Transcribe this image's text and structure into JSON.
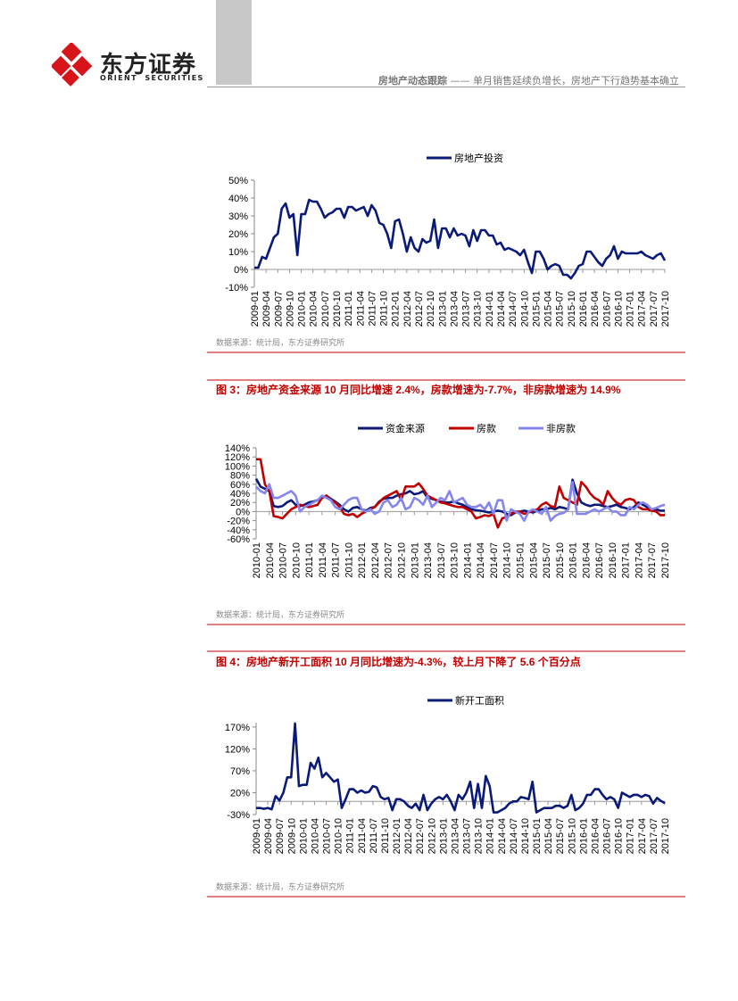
{
  "header": {
    "logo_cn": "东方证券",
    "logo_en": "ORIENT  SECURITIES",
    "section": "房地产动态跟踪",
    "dash": "——",
    "subtitle": "单月销售延续负增长，房地产下行趋势基本确立"
  },
  "chart_data": [
    {
      "type": "line",
      "legend": "top",
      "categories": [
        "2009-01",
        null,
        null,
        "2009-04",
        null,
        null,
        "2009-07",
        null,
        null,
        "2009-10",
        null,
        null,
        "2010-01",
        null,
        null,
        "2010-04",
        null,
        null,
        "2010-07",
        null,
        null,
        "2010-10",
        null,
        null,
        "2011-01",
        null,
        null,
        "2011-04",
        null,
        null,
        "2011-07",
        null,
        null,
        "2011-10",
        null,
        null,
        "2012-01",
        null,
        null,
        "2012-04",
        null,
        null,
        "2012-07",
        null,
        null,
        "2012-10",
        null,
        null,
        "2013-01",
        null,
        null,
        "2013-04",
        null,
        null,
        "2013-07",
        null,
        null,
        "2013-10",
        null,
        null,
        "2014-01",
        null,
        null,
        "2014-04",
        null,
        null,
        "2014-07",
        null,
        null,
        "2014-10",
        null,
        null,
        "2015-01",
        null,
        null,
        "2015-04",
        null,
        null,
        "2015-07",
        null,
        null,
        "2015-10",
        null,
        null,
        "2016-01",
        null,
        null,
        "2016-04",
        null,
        null,
        "2016-07",
        null,
        null,
        "2016-10",
        null,
        null,
        "2017-01",
        null,
        null,
        "2017-04",
        null,
        null,
        "2017-07",
        null,
        null,
        "2017-10"
      ],
      "series": [
        {
          "name": "房地产投资",
          "color": "#0a1a78",
          "values": [
            1,
            1,
            7,
            6,
            12,
            18,
            20,
            34,
            37,
            29,
            31,
            8,
            31,
            31,
            39,
            38,
            38,
            34,
            29,
            31,
            32,
            34,
            34,
            29,
            35,
            35,
            33,
            34,
            35,
            30,
            36,
            33,
            26,
            25,
            20,
            12,
            27,
            28,
            20,
            10,
            18,
            12,
            10,
            17,
            15,
            16,
            28,
            12,
            23,
            23,
            18,
            23,
            19,
            20,
            19,
            13,
            22,
            16,
            22,
            22,
            19,
            19,
            14,
            15,
            11,
            12,
            11,
            10,
            8,
            11,
            4,
            -2,
            10,
            10,
            6,
            0,
            2,
            3,
            2,
            -3,
            -3,
            -5,
            -2,
            2,
            3,
            10,
            10,
            7,
            4,
            2,
            6,
            8,
            13,
            6,
            10,
            9,
            9,
            9,
            9,
            10,
            8,
            7,
            6,
            8,
            9,
            5
          ]
        }
      ],
      "ylim": [
        -10,
        50
      ],
      "yticks": [
        {
          "value": -10,
          "label": "-10%"
        },
        {
          "value": 0,
          "label": "0%"
        },
        {
          "value": 10,
          "label": "10%"
        },
        {
          "value": 20,
          "label": "20%"
        },
        {
          "value": 30,
          "label": "30%"
        },
        {
          "value": 40,
          "label": "40%"
        },
        {
          "value": 50,
          "label": "50%"
        }
      ],
      "source": "数据来源：统计局，东方证券研究所"
    },
    {
      "type": "line",
      "legend": "top",
      "title": "图 3：房地产资金来源 10 月同比增速 2.4%，房款增速为-7.7%，非房款增速为 14.9%",
      "categories": [
        "2010-01",
        null,
        null,
        "2010-04",
        null,
        null,
        "2010-07",
        null,
        null,
        "2010-10",
        null,
        null,
        "2011-01",
        null,
        null,
        "2011-04",
        null,
        null,
        "2011-07",
        null,
        null,
        "2011-10",
        null,
        null,
        "2012-01",
        null,
        null,
        "2012-04",
        null,
        null,
        "2012-07",
        null,
        null,
        "2012-10",
        null,
        null,
        "2013-01",
        null,
        null,
        "2013-04",
        null,
        null,
        "2013-07",
        null,
        null,
        "2013-10",
        null,
        null,
        "2014-01",
        null,
        null,
        "2014-04",
        null,
        null,
        "2014-07",
        null,
        null,
        "2014-10",
        null,
        null,
        "2015-01",
        null,
        null,
        "2015-04",
        null,
        null,
        "2015-07",
        null,
        null,
        "2015-10",
        null,
        null,
        "2016-01",
        null,
        null,
        "2016-04",
        null,
        null,
        "2016-07",
        null,
        null,
        "2016-10",
        null,
        null,
        "2017-01",
        null,
        null,
        "2017-04",
        null,
        null,
        "2017-07",
        null,
        null,
        "2017-10"
      ],
      "series": [
        {
          "name": "资金来源",
          "color": "#0a1a78",
          "values": [
            72,
            55,
            50,
            45,
            12,
            10,
            12,
            20,
            25,
            15,
            12,
            15,
            20,
            22,
            25,
            30,
            35,
            28,
            22,
            15,
            5,
            0,
            8,
            10,
            5,
            2,
            8,
            10,
            22,
            28,
            30,
            30,
            35,
            38,
            40,
            45,
            38,
            40,
            45,
            30,
            28,
            25,
            22,
            20,
            20,
            22,
            18,
            15,
            10,
            5,
            3,
            2,
            0,
            -2,
            0,
            2,
            0,
            -5,
            -8,
            -2,
            0,
            2,
            0,
            -2,
            2,
            5,
            5,
            8,
            5,
            10,
            8,
            5,
            70,
            40,
            20,
            15,
            12,
            15,
            15,
            12,
            10,
            12,
            15,
            10,
            8,
            5,
            10,
            20,
            15,
            10,
            5,
            5,
            2,
            2
          ]
        },
        {
          "name": "房款",
          "color": "#c00000",
          "values": [
            115,
            115,
            60,
            45,
            -10,
            -12,
            -15,
            -5,
            5,
            10,
            15,
            12,
            10,
            12,
            15,
            30,
            35,
            25,
            20,
            10,
            -5,
            -8,
            -5,
            -12,
            -5,
            0,
            5,
            10,
            20,
            30,
            35,
            40,
            45,
            25,
            55,
            55,
            55,
            62,
            50,
            35,
            30,
            25,
            20,
            18,
            15,
            12,
            10,
            10,
            5,
            0,
            -15,
            -12,
            -8,
            -10,
            -5,
            -35,
            -15,
            -12,
            -5,
            0,
            0,
            -5,
            -2,
            2,
            5,
            15,
            20,
            12,
            10,
            55,
            30,
            25,
            20,
            15,
            65,
            55,
            40,
            30,
            25,
            15,
            45,
            30,
            20,
            15,
            25,
            28,
            25,
            10,
            5,
            5,
            2,
            0,
            -8,
            -8
          ]
        },
        {
          "name": "非房款",
          "color": "#8585ee",
          "values": [
            55,
            45,
            40,
            60,
            30,
            30,
            35,
            40,
            45,
            35,
            0,
            10,
            15,
            20,
            25,
            35,
            30,
            25,
            10,
            5,
            15,
            25,
            30,
            30,
            5,
            0,
            5,
            -5,
            0,
            20,
            25,
            10,
            15,
            30,
            5,
            10,
            30,
            25,
            15,
            35,
            10,
            20,
            30,
            25,
            45,
            20,
            25,
            30,
            15,
            10,
            10,
            15,
            5,
            20,
            -5,
            25,
            25,
            -20,
            5,
            0,
            -5,
            -20,
            0,
            5,
            0,
            -5,
            10,
            -20,
            -10,
            -5,
            -3,
            5,
            65,
            -5,
            -5,
            -5,
            0,
            5,
            0,
            5,
            10,
            0,
            0,
            -8,
            -8,
            10,
            5,
            15,
            20,
            15,
            5,
            8,
            12,
            15
          ]
        }
      ],
      "ylim": [
        -60,
        140
      ],
      "yticks": [
        {
          "value": -60,
          "label": "-60%"
        },
        {
          "value": -40,
          "label": "-40%"
        },
        {
          "value": -20,
          "label": "-20%"
        },
        {
          "value": 0,
          "label": "0%"
        },
        {
          "value": 20,
          "label": "20%"
        },
        {
          "value": 40,
          "label": "40%"
        },
        {
          "value": 60,
          "label": "60%"
        },
        {
          "value": 80,
          "label": "80%"
        },
        {
          "value": 100,
          "label": "100%"
        },
        {
          "value": 120,
          "label": "120%"
        },
        {
          "value": 140,
          "label": "140%"
        }
      ],
      "source": "数据来源：统计局，东方证券研究所"
    },
    {
      "type": "line",
      "legend": "top",
      "title": "图 4：房地产新开工面积 10 月同比增速为-4.3%，较上月下降了 5.6 个百分点",
      "categories": [
        "2009-01",
        null,
        null,
        "2009-04",
        null,
        null,
        "2009-07",
        null,
        null,
        "2009-10",
        null,
        null,
        "2010-01",
        null,
        null,
        "2010-04",
        null,
        null,
        "2010-07",
        null,
        null,
        "2010-10",
        null,
        null,
        "2011-01",
        null,
        null,
        "2011-04",
        null,
        null,
        "2011-07",
        null,
        null,
        "2011-10",
        null,
        null,
        "2012-01",
        null,
        null,
        "2012-04",
        null,
        null,
        "2012-07",
        null,
        null,
        "2012-10",
        null,
        null,
        "2013-01",
        null,
        null,
        "2013-04",
        null,
        null,
        "2013-07",
        null,
        null,
        "2013-10",
        null,
        null,
        "2014-01",
        null,
        null,
        "2014-04",
        null,
        null,
        "2014-07",
        null,
        null,
        "2014-10",
        null,
        null,
        "2015-01",
        null,
        null,
        "2015-04",
        null,
        null,
        "2015-07",
        null,
        null,
        "2015-10",
        null,
        null,
        "2016-01",
        null,
        null,
        "2016-04",
        null,
        null,
        "2016-07",
        null,
        null,
        "2016-10",
        null,
        null,
        "2017-01",
        null,
        null,
        "2017-04",
        null,
        null,
        "2017-07",
        null,
        null,
        "2017-10"
      ],
      "series": [
        {
          "name": "新开工面积",
          "color": "#0a1a78",
          "values": [
            -15,
            -15,
            -17,
            -15,
            -18,
            12,
            2,
            20,
            55,
            55,
            178,
            35,
            38,
            38,
            88,
            75,
            100,
            55,
            65,
            55,
            45,
            50,
            -15,
            5,
            28,
            28,
            20,
            25,
            20,
            22,
            35,
            32,
            10,
            5,
            8,
            -20,
            5,
            5,
            0,
            -10,
            -15,
            -5,
            -20,
            15,
            -20,
            -5,
            5,
            10,
            5,
            15,
            0,
            -20,
            15,
            5,
            20,
            45,
            -15,
            40,
            -15,
            58,
            35,
            -25,
            -25,
            -20,
            -15,
            -5,
            0,
            0,
            10,
            8,
            5,
            45,
            -25,
            -20,
            -15,
            -15,
            -15,
            -10,
            -10,
            -15,
            -10,
            15,
            -20,
            -15,
            -5,
            15,
            15,
            28,
            28,
            15,
            5,
            10,
            5,
            -15,
            20,
            15,
            10,
            15,
            15,
            10,
            15,
            12,
            -5,
            8,
            1,
            -4
          ]
        }
      ],
      "ylim": [
        -30,
        180
      ],
      "yticks": [
        {
          "value": -30,
          "label": "-30%"
        },
        {
          "value": 20,
          "label": "20%"
        },
        {
          "value": 70,
          "label": "70%"
        },
        {
          "value": 120,
          "label": "120%"
        },
        {
          "value": 170,
          "label": "170%"
        }
      ],
      "source": "数据来源：统计局，东方证券研究所"
    }
  ]
}
